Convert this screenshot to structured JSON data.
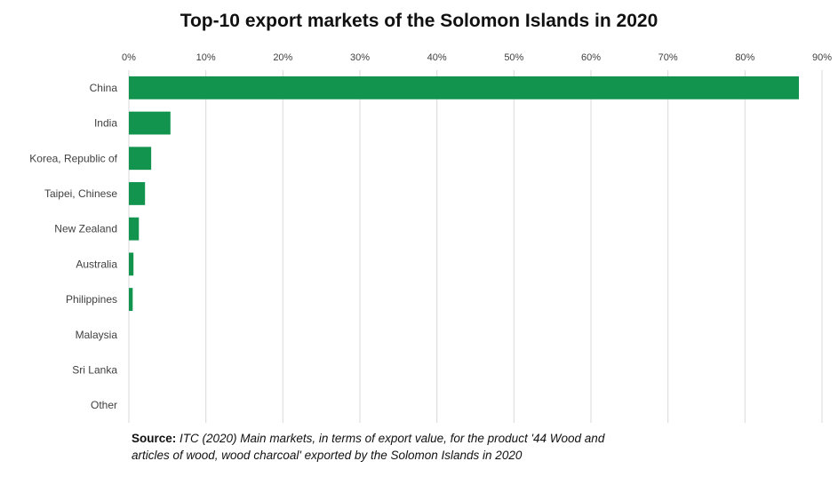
{
  "chart_data": {
    "type": "bar",
    "orientation": "horizontal",
    "title": "Top-10 export markets of the Solomon Islands in 2020",
    "categories": [
      "China",
      "India",
      "Korea, Republic of",
      "Taipei, Chinese",
      "New Zealand",
      "Australia",
      "Philippines",
      "Malaysia",
      "Sri Lanka",
      "Other"
    ],
    "values": [
      0.87,
      0.054,
      0.029,
      0.021,
      0.013,
      0.006,
      0.005,
      0.0,
      0.0,
      0.0
    ],
    "xlim": [
      0,
      0.9
    ],
    "xticks": [
      0,
      0.1,
      0.2,
      0.3,
      0.4,
      0.5,
      0.6,
      0.7,
      0.8,
      0.9
    ],
    "xtick_labels": [
      "0%",
      "10%",
      "20%",
      "30%",
      "40%",
      "50%",
      "60%",
      "70%",
      "80%",
      "90%"
    ],
    "x_axis_position": "top",
    "grid": true,
    "legend": "none",
    "bar_color": "#12944e",
    "grid_color": "#d9d9d9"
  },
  "source": {
    "label": "Source:",
    "text": "ITC (2020) Main markets, in terms of export value, for the product '44 Wood and articles of wood, wood charcoal' exported by the Solomon Islands in 2020"
  }
}
